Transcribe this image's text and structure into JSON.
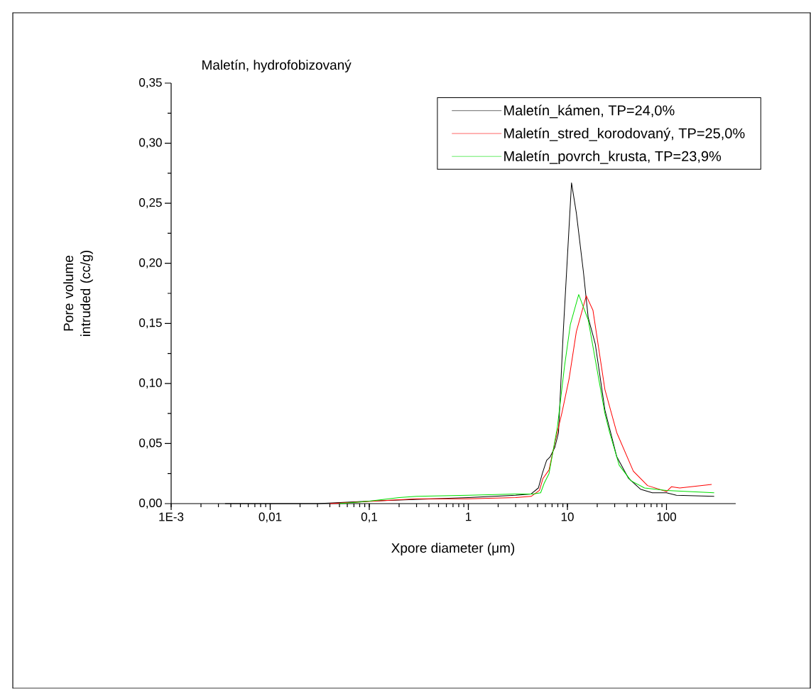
{
  "chart_data": {
    "type": "line",
    "title": "Maletín, hydrofobizovaný",
    "xlabel": "Xpore diameter (μm)",
    "ylabel": "Pore volume intruded (cc/g)",
    "log": "x",
    "legend": "top right",
    "marker": "none",
    "line_style": "solid",
    "xlim": [
      0.001,
      500
    ],
    "ylim": [
      0,
      0.35
    ],
    "xticks": [
      {
        "value": 0.001,
        "label": "1E-3"
      },
      {
        "value": 0.01,
        "label": "0,01"
      },
      {
        "value": 0.1,
        "label": "0,1"
      },
      1,
      10,
      100
    ],
    "yticks": [
      {
        "value": 0,
        "label": "0,00"
      },
      {
        "value": 0.05,
        "label": "0,05"
      },
      {
        "value": 0.1,
        "label": "0,10"
      },
      {
        "value": 0.15,
        "label": "0,15"
      },
      {
        "value": 0.2,
        "label": "0,20"
      },
      {
        "value": 0.25,
        "label": "0,25"
      },
      {
        "value": 0.3,
        "label": "0,30"
      },
      {
        "value": 0.35,
        "label": "0,35"
      }
    ],
    "series": [
      {
        "name": "Maletín_kámen, TP=24,0%",
        "color": "#000000",
        "x": [
          0.0035,
          0.03,
          0.1,
          1,
          3,
          4.3,
          5.09,
          5.58,
          6.17,
          6.7,
          7.48,
          8.13,
          9.08,
          11.0,
          12.3,
          14.5,
          16.2,
          19.1,
          23.9,
          31.5,
          41.4,
          54.6,
          71.9,
          100,
          126,
          303
        ],
        "values": [
          0,
          0,
          0.002,
          0.005,
          0.007,
          0.008,
          0.013,
          0.025,
          0.036,
          0.039,
          0.047,
          0.059,
          0.143,
          0.267,
          0.242,
          0.193,
          0.155,
          0.133,
          0.078,
          0.039,
          0.021,
          0.012,
          0.009,
          0.009,
          0.007,
          0.006
        ]
      },
      {
        "name": "Maletín_stred_korodovaný, TP=25,0%",
        "color": "#ff0000",
        "x": [
          0.04,
          0.3,
          1,
          3,
          4.3,
          5.22,
          5.67,
          6.52,
          7.48,
          8.83,
          10.4,
          12.3,
          15.5,
          18.1,
          23.9,
          31.5,
          46.3,
          64.4,
          100,
          112,
          136,
          286
        ],
        "values": [
          0,
          0.004,
          0.004,
          0.005,
          0.006,
          0.011,
          0.021,
          0.028,
          0.051,
          0.076,
          0.104,
          0.143,
          0.173,
          0.161,
          0.095,
          0.059,
          0.027,
          0.015,
          0.01,
          0.014,
          0.013,
          0.016
        ]
      },
      {
        "name": "Maletín_povrch_krusta, TP=23,9%",
        "color": "#00e000",
        "x": [
          0.05,
          0.1,
          0.2,
          0.3,
          1,
          3,
          4.5,
          5.37,
          5.83,
          6.52,
          7.9,
          9.34,
          10.7,
          13.0,
          16.2,
          23.9,
          26.7,
          33.3,
          43.9,
          60.0,
          100,
          303
        ],
        "values": [
          0,
          0.002,
          0.005,
          0.006,
          0.007,
          0.008,
          0.008,
          0.009,
          0.017,
          0.025,
          0.063,
          0.114,
          0.149,
          0.174,
          0.153,
          0.075,
          0.059,
          0.032,
          0.019,
          0.013,
          0.011,
          0.009
        ]
      }
    ]
  }
}
